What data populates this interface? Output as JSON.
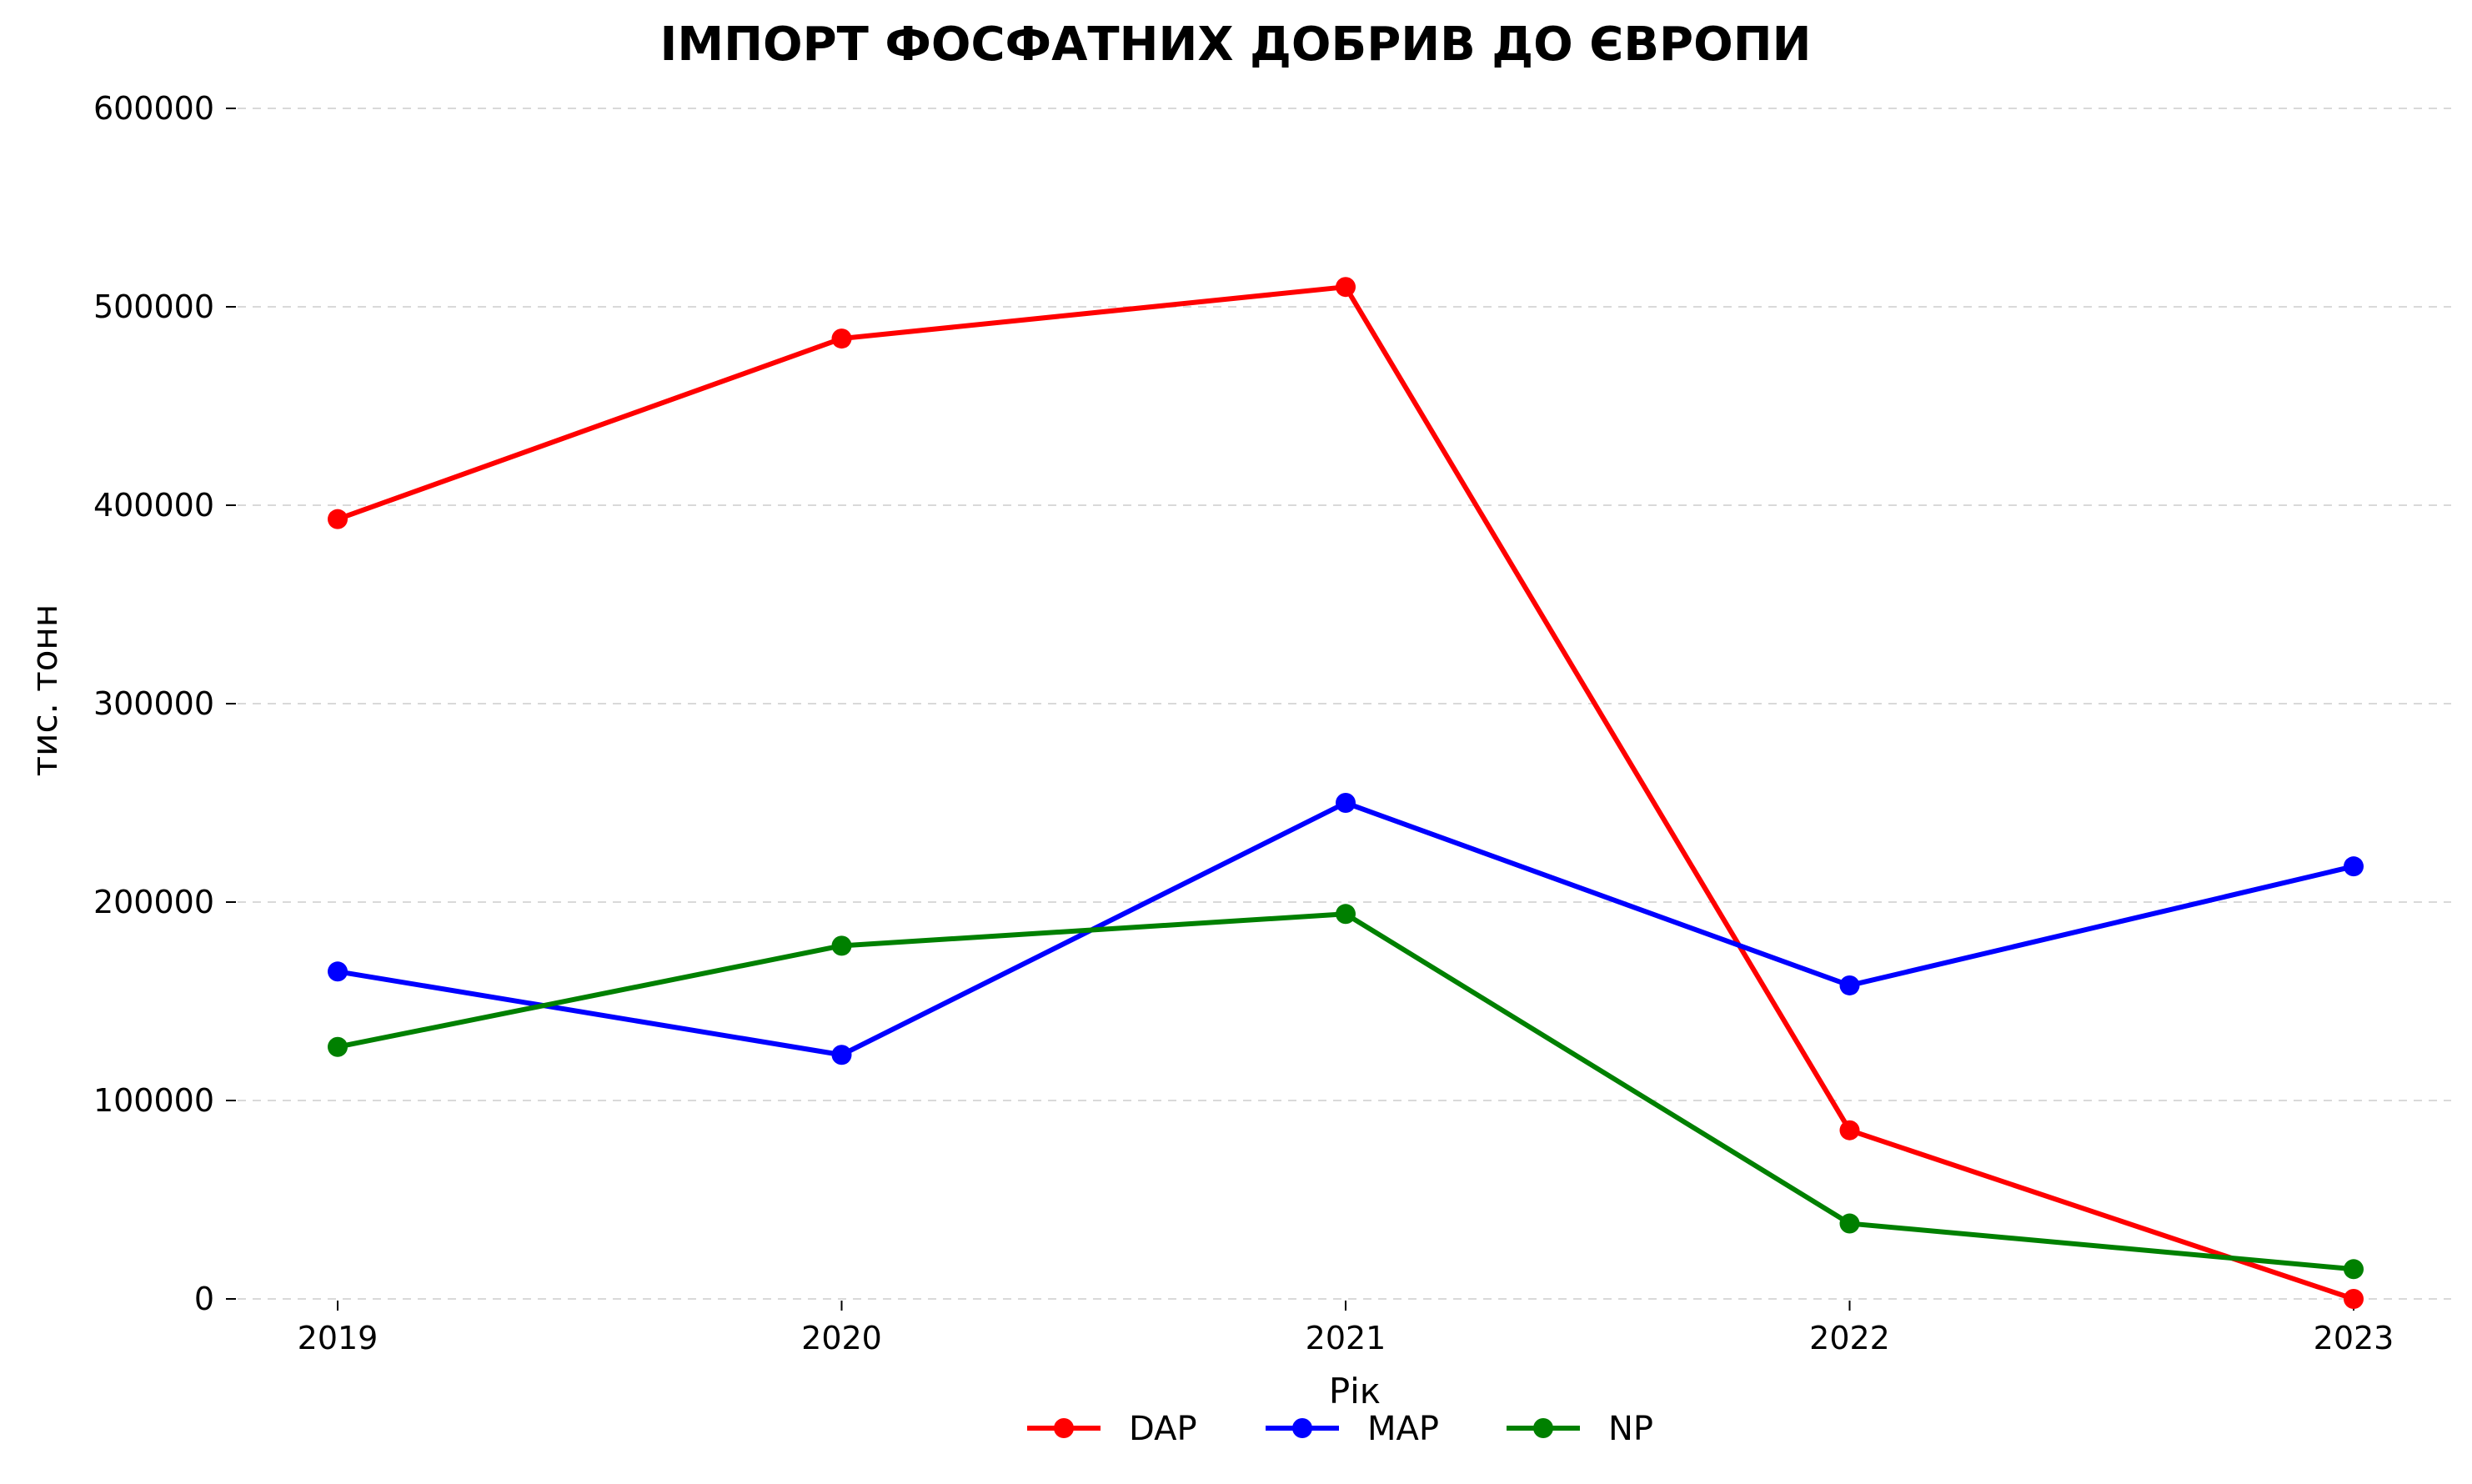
{
  "chart_data": {
    "type": "line",
    "title": "ІМПОРТ ФОСФАТНИХ ДОБРИВ ДО ЄВРОПИ",
    "xlabel": "Рік",
    "ylabel": "тис. тонн",
    "x": [
      2019,
      2020,
      2021,
      2022,
      2023
    ],
    "x_labels": [
      "2019",
      "2020",
      "2021",
      "2022",
      "2023"
    ],
    "ylim": [
      0,
      600000
    ],
    "y_ticks": [
      0,
      100000,
      200000,
      300000,
      400000,
      500000,
      600000
    ],
    "y_tick_labels": [
      "0",
      "100000",
      "200000",
      "300000",
      "400000",
      "500000",
      "600000"
    ],
    "grid": "horizontal dashed",
    "legend_position": "bottom-center",
    "series": [
      {
        "name": "DAP",
        "color": "#ff0000",
        "values": [
          393000,
          484000,
          510000,
          85000,
          0
        ]
      },
      {
        "name": "MAP",
        "color": "#0000ff",
        "values": [
          165000,
          123000,
          250000,
          158000,
          218000
        ]
      },
      {
        "name": "NP",
        "color": "#008000",
        "values": [
          127000,
          178000,
          194000,
          38000,
          15000
        ]
      }
    ]
  }
}
